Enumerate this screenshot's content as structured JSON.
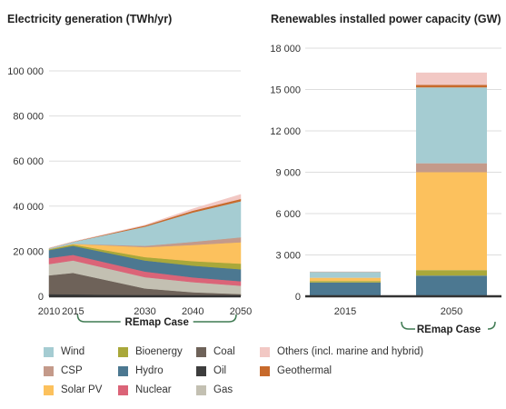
{
  "titles": {
    "left": "Electricity generation (TWh/yr)",
    "right": "Renewables installed power capacity (GW)"
  },
  "remap_label": "REmap Case",
  "chart_data": [
    {
      "type": "area",
      "title": "Electricity generation (TWh/yr)",
      "stacked": true,
      "x": [
        2010,
        2015,
        2030,
        2040,
        2050
      ],
      "x_ticks": [
        "2010",
        "2015",
        "2030",
        "2040",
        "2050"
      ],
      "ylim": [
        0,
        100000
      ],
      "y_ticks": [
        "0",
        "20 000",
        "40 000",
        "60 000",
        "80 000",
        "100 000"
      ],
      "y_tick_values": [
        0,
        20000,
        40000,
        60000,
        80000,
        100000
      ],
      "grid": true,
      "series": [
        {
          "name": "Oil",
          "color": "#3d3d3d",
          "values": [
            1000,
            900,
            500,
            300,
            200
          ]
        },
        {
          "name": "Coal",
          "color": "#6e6259",
          "values": [
            8300,
            9500,
            3000,
            1500,
            800
          ]
        },
        {
          "name": "Gas",
          "color": "#c3c0b2",
          "values": [
            5000,
            5500,
            5000,
            4500,
            3700
          ]
        },
        {
          "name": "Nuclear",
          "color": "#db6478",
          "values": [
            2700,
            2500,
            2500,
            2100,
            2000
          ]
        },
        {
          "name": "Hydro",
          "color": "#4c7891",
          "values": [
            3500,
            4000,
            4900,
            5200,
            5300
          ]
        },
        {
          "name": "Bioenergy",
          "color": "#a9a83a",
          "values": [
            400,
            600,
            1500,
            2000,
            2500
          ]
        },
        {
          "name": "Solar PV",
          "color": "#fcc15d",
          "values": [
            50,
            300,
            4400,
            7200,
            9500
          ]
        },
        {
          "name": "CSP",
          "color": "#c49a8a",
          "values": [
            10,
            20,
            600,
            1400,
            2200
          ]
        },
        {
          "name": "Wind",
          "color": "#a5ccd2",
          "values": [
            350,
            800,
            8500,
            13000,
            16000
          ]
        },
        {
          "name": "Geothermal",
          "color": "#c76a2c",
          "values": [
            70,
            80,
            500,
            800,
            1000
          ]
        },
        {
          "name": "Others (incl. marine and hybrid)",
          "color": "#f2c8c4",
          "values": [
            0,
            0,
            200,
            800,
            2000
          ]
        }
      ],
      "annotation": {
        "text": "REmap Case",
        "from": 2015,
        "to": 2050
      }
    },
    {
      "type": "bar",
      "title": "Renewables installed power capacity (GW)",
      "stacked": true,
      "categories": [
        "2015",
        "2050"
      ],
      "ylim": [
        0,
        18000
      ],
      "y_ticks": [
        "0",
        "3 000",
        "6 000",
        "9 000",
        "12 000",
        "15 000",
        "18 000"
      ],
      "y_tick_values": [
        0,
        3000,
        6000,
        9000,
        12000,
        15000,
        18000
      ],
      "grid": true,
      "series": [
        {
          "name": "Hydro",
          "color": "#4c7891",
          "values": [
            1000,
            1500
          ]
        },
        {
          "name": "Bioenergy",
          "color": "#a9a83a",
          "values": [
            110,
            400
          ]
        },
        {
          "name": "Solar PV",
          "color": "#fcc15d",
          "values": [
            230,
            7100
          ]
        },
        {
          "name": "CSP",
          "color": "#c49a8a",
          "values": [
            5,
            650
          ]
        },
        {
          "name": "Wind",
          "color": "#a5ccd2",
          "values": [
            420,
            5500
          ]
        },
        {
          "name": "Geothermal",
          "color": "#c76a2c",
          "values": [
            12,
            180
          ]
        },
        {
          "name": "Others (incl. marine and hybrid)",
          "color": "#f2c8c4",
          "values": [
            20,
            900
          ]
        }
      ],
      "annotation": {
        "text": "REmap Case",
        "category": "2050"
      }
    }
  ],
  "legend": [
    {
      "label": "Wind",
      "color": "#a5ccd2"
    },
    {
      "label": "CSP",
      "color": "#c49a8a"
    },
    {
      "label": "Solar PV",
      "color": "#fcc15d"
    },
    {
      "label": "Bioenergy",
      "color": "#a9a83a"
    },
    {
      "label": "Hydro",
      "color": "#4c7891"
    },
    {
      "label": "Nuclear",
      "color": "#db6478"
    },
    {
      "label": "Coal",
      "color": "#6e6259"
    },
    {
      "label": "Oil",
      "color": "#3d3d3d"
    },
    {
      "label": "Gas",
      "color": "#c3c0b2"
    },
    {
      "label": "Others (incl. marine and hybrid)",
      "color": "#f2c8c4"
    },
    {
      "label": "Geothermal",
      "color": "#c76a2c"
    }
  ]
}
